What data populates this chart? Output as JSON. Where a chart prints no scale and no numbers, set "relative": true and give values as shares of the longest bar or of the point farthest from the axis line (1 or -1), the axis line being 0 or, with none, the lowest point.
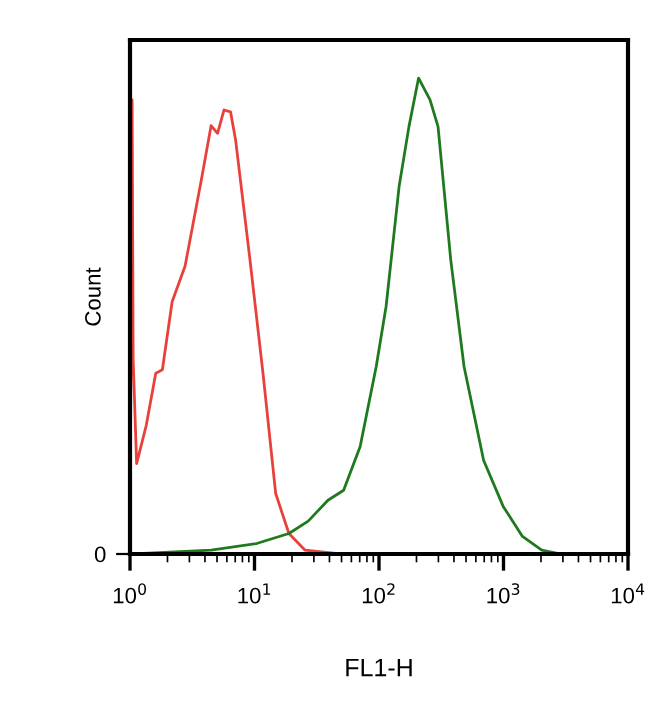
{
  "chart_data": {
    "type": "line",
    "xlabel": "FL1-H",
    "ylabel": "Count",
    "relative": true,
    "log": "x",
    "grid": false,
    "legend": false,
    "xlim": [
      1,
      10000
    ],
    "xticks": [
      {
        "value": 1,
        "label": "10$^{0}$"
      },
      {
        "value": 10,
        "label": "10$^{1}$"
      },
      {
        "value": 100,
        "label": "10$^{2}$"
      },
      {
        "value": 1000,
        "label": "10$^{3}$"
      },
      {
        "value": 10000,
        "label": "10$^{4}$"
      }
    ],
    "annotations": [
      "0"
    ],
    "series": [
      {
        "color": "#e8403a",
        "x": [
          1,
          1.04,
          1.06,
          1.13,
          1.35,
          1.61,
          1.82,
          2.18,
          2.77,
          3.74,
          4.48,
          5.05,
          5.69,
          6.42,
          7.05,
          9.2,
          11.7,
          14.8,
          18.9,
          25.5,
          49,
          10000
        ],
        "values": [
          0.0,
          0.954,
          0.41,
          0.19,
          0.27,
          0.38,
          0.387,
          0.53,
          0.605,
          0.786,
          0.9,
          0.884,
          0.933,
          0.929,
          0.87,
          0.618,
          0.38,
          0.127,
          0.043,
          0.008,
          0.0,
          0.0
        ]
      },
      {
        "color": "#1f7a1f",
        "x": [
          1.06,
          4.48,
          10.4,
          18.9,
          27,
          38.9,
          52,
          70.6,
          95,
          114,
          145,
          174,
          208,
          257,
          298,
          377,
          482,
          692,
          994,
          1420,
          2030,
          2900,
          10000
        ],
        "values": [
          0.0,
          0.008,
          0.022,
          0.043,
          0.069,
          0.113,
          0.134,
          0.226,
          0.394,
          0.52,
          0.772,
          0.898,
          1.0,
          0.954,
          0.898,
          0.618,
          0.394,
          0.197,
          0.1,
          0.037,
          0.008,
          0.0,
          0.0
        ]
      }
    ]
  }
}
